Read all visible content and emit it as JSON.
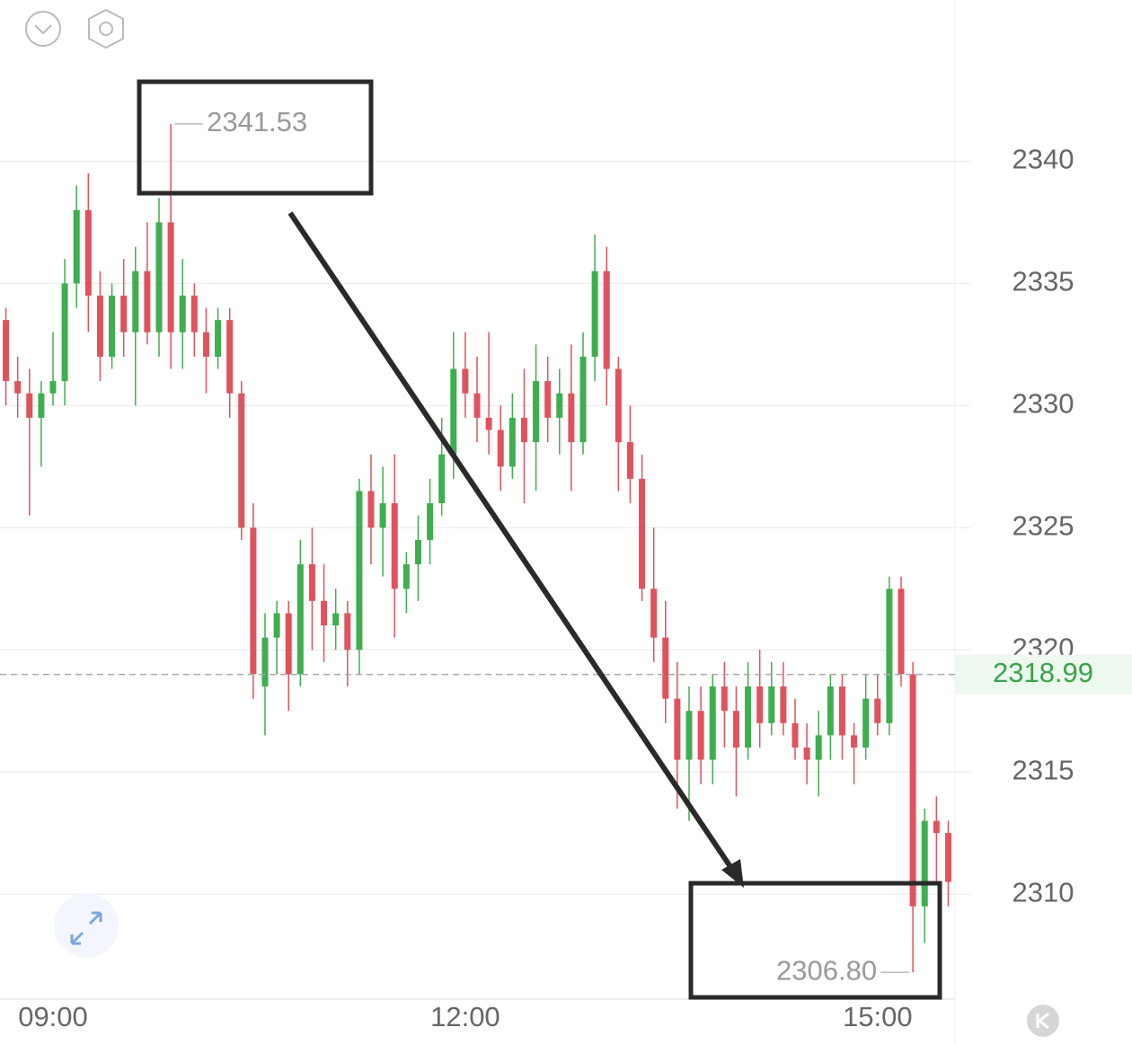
{
  "chart_data": {
    "type": "candlestick",
    "categories": [
      null,
      null,
      null,
      null,
      "09:00",
      null,
      null,
      null,
      null,
      null,
      null,
      null,
      null,
      null,
      null,
      null,
      null,
      null,
      null,
      null,
      null,
      null,
      null,
      null,
      null,
      null,
      null,
      null,
      null,
      null,
      null,
      null,
      null,
      null,
      null,
      null,
      null,
      null,
      null,
      "12:00",
      null,
      null,
      null,
      null,
      null,
      null,
      null,
      null,
      null,
      null,
      null,
      null,
      null,
      null,
      null,
      null,
      null,
      null,
      null,
      null,
      null,
      null,
      null,
      null,
      null,
      null,
      null,
      null,
      null,
      null,
      null,
      null,
      null,
      null,
      "15:00",
      null,
      null,
      null,
      null,
      null,
      null
    ],
    "ohlc": [
      [
        2333.5,
        2334,
        2330,
        2331
      ],
      [
        2331,
        2332,
        2329.5,
        2330.5
      ],
      [
        2330.5,
        2331.5,
        2325.5,
        2329.5
      ],
      [
        2329.5,
        2331,
        2327.5,
        2330.5
      ],
      [
        2330.5,
        2333,
        2330,
        2331
      ],
      [
        2331,
        2336,
        2330,
        2335
      ],
      [
        2335,
        2339,
        2334,
        2338
      ],
      [
        2338,
        2339.5,
        2333,
        2334.5
      ],
      [
        2334.5,
        2335.5,
        2331,
        2332
      ],
      [
        2332,
        2335,
        2331.5,
        2334.5
      ],
      [
        2334.5,
        2336,
        2332,
        2333
      ],
      [
        2333,
        2336.5,
        2330,
        2335.5
      ],
      [
        2335.5,
        2337.5,
        2332.5,
        2333
      ],
      [
        2333,
        2338.5,
        2332,
        2337.5
      ],
      [
        2337.5,
        2341.53,
        2331.5,
        2333
      ],
      [
        2333,
        2336,
        2331.5,
        2334.5
      ],
      [
        2334.5,
        2335,
        2332,
        2333
      ],
      [
        2333,
        2334,
        2330.5,
        2332
      ],
      [
        2332,
        2334,
        2331.5,
        2333.5
      ],
      [
        2333.5,
        2334,
        2329.5,
        2330.5
      ],
      [
        2330.5,
        2331,
        2324.5,
        2325
      ],
      [
        2325,
        2326,
        2318,
        2319
      ],
      [
        2318.5,
        2321.5,
        2316.5,
        2320.5
      ],
      [
        2320.5,
        2322,
        2319,
        2321.5
      ],
      [
        2321.5,
        2322,
        2317.5,
        2319
      ],
      [
        2319,
        2324.5,
        2318.5,
        2323.5
      ],
      [
        2323.5,
        2325,
        2320,
        2322
      ],
      [
        2322,
        2323.5,
        2319.5,
        2321
      ],
      [
        2321,
        2322.5,
        2320,
        2321.5
      ],
      [
        2321.5,
        2322,
        2318.5,
        2320
      ],
      [
        2320,
        2327,
        2319,
        2326.5
      ],
      [
        2326.5,
        2328,
        2323.5,
        2325
      ],
      [
        2325,
        2327.5,
        2323,
        2326
      ],
      [
        2326,
        2328,
        2320.5,
        2322.5
      ],
      [
        2322.5,
        2324,
        2321.5,
        2323.5
      ],
      [
        2323.5,
        2325.5,
        2322,
        2324.5
      ],
      [
        2324.5,
        2327,
        2323.5,
        2326
      ],
      [
        2326,
        2329.5,
        2325.5,
        2328
      ],
      [
        2328,
        2333,
        2327,
        2331.5
      ],
      [
        2331.5,
        2333,
        2329.5,
        2330.5
      ],
      [
        2330.5,
        2332,
        2328.5,
        2329.5
      ],
      [
        2329.5,
        2333,
        2328,
        2329
      ],
      [
        2329,
        2330,
        2326.5,
        2327.5
      ],
      [
        2327.5,
        2330.5,
        2327,
        2329.5
      ],
      [
        2329.5,
        2331.5,
        2326,
        2328.5
      ],
      [
        2328.5,
        2332.5,
        2326.5,
        2331
      ],
      [
        2331,
        2332,
        2328.5,
        2329.5
      ],
      [
        2329.5,
        2331.5,
        2328,
        2330.5
      ],
      [
        2330.5,
        2332.5,
        2326.5,
        2328.5
      ],
      [
        2328.5,
        2333,
        2328,
        2332
      ],
      [
        2332,
        2337,
        2331,
        2335.5
      ],
      [
        2335.5,
        2336.5,
        2330,
        2331.5
      ],
      [
        2331.5,
        2332,
        2326.5,
        2328.5
      ],
      [
        2328.5,
        2330,
        2326,
        2327
      ],
      [
        2327,
        2328,
        2322,
        2322.5
      ],
      [
        2322.5,
        2325,
        2319.5,
        2320.5
      ],
      [
        2320.5,
        2322,
        2317,
        2318
      ],
      [
        2318,
        2319.5,
        2313.5,
        2315.5
      ],
      [
        2315.5,
        2318.5,
        2313,
        2317.5
      ],
      [
        2317.5,
        2318.5,
        2314.5,
        2315.5
      ],
      [
        2315.5,
        2319,
        2314.5,
        2318.5
      ],
      [
        2318.5,
        2319.5,
        2316,
        2317.5
      ],
      [
        2317.5,
        2318.5,
        2314,
        2316
      ],
      [
        2316,
        2319.5,
        2315.5,
        2318.5
      ],
      [
        2318.5,
        2320,
        2316,
        2317
      ],
      [
        2317,
        2319.5,
        2316.5,
        2318.5
      ],
      [
        2318.5,
        2319.5,
        2316.5,
        2317
      ],
      [
        2317,
        2318,
        2315.5,
        2316
      ],
      [
        2316,
        2317,
        2314.5,
        2315.5
      ],
      [
        2315.5,
        2317.5,
        2314,
        2316.5
      ],
      [
        2316.5,
        2319,
        2315.5,
        2318.5
      ],
      [
        2318.5,
        2319,
        2315.5,
        2316.5
      ],
      [
        2316.5,
        2317,
        2314.5,
        2316
      ],
      [
        2316,
        2319,
        2315.5,
        2318
      ],
      [
        2318,
        2319,
        2316.5,
        2317
      ],
      [
        2317,
        2323,
        2316.5,
        2322.5
      ],
      [
        2322.5,
        2323,
        2318.5,
        2319
      ],
      [
        2319,
        2319.5,
        2306.8,
        2309.5
      ],
      [
        2309.5,
        2313.5,
        2308,
        2313
      ],
      [
        2313,
        2314,
        2310.5,
        2312.5
      ],
      [
        2312.5,
        2313,
        2309.5,
        2310.5
      ]
    ],
    "up_color": "#3fae4f",
    "down_color": "#e0525e",
    "ylim": [
      2305.7,
      2346.6
    ],
    "yticks": [
      2310,
      2315,
      2320,
      2325,
      2330,
      2335,
      2340
    ],
    "grid": true,
    "current_price": 2318.99,
    "max_label": 2341.53,
    "min_label": {
      "value": 2306.8,
      "label": "2306.80"
    }
  }
}
